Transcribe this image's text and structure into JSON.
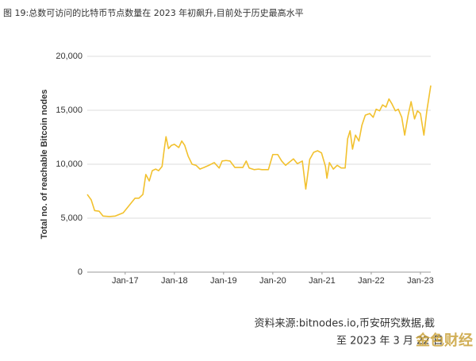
{
  "chart_data": {
    "type": "line",
    "title": "图 19:总数可访问的比特币节点数量在 2023 年初飙升,目前处于历史最高水平",
    "y_label": "Total no. of reachable Bitcoin nodes",
    "source": [
      "资料来源:bitnodes.io,币安研究数据,截",
      "至 2023 年 3 月 22 日"
    ],
    "watermark": "金色财经",
    "color": "#f2c12e",
    "grid": true,
    "xlim": [
      2016.23,
      2023.21
    ],
    "xticks": [
      {
        "value": 2017.0,
        "label": "Jan-17"
      },
      {
        "value": 2018.0,
        "label": "Jan-18"
      },
      {
        "value": 2019.0,
        "label": "Jan-19"
      },
      {
        "value": 2020.0,
        "label": "Jan-20"
      },
      {
        "value": 2021.0,
        "label": "Jan-21"
      },
      {
        "value": 2022.0,
        "label": "Jan-22"
      },
      {
        "value": 2023.0,
        "label": "Jan-23"
      }
    ],
    "ylim": [
      0,
      20000
    ],
    "yticks": [
      0,
      {
        "value": 5000,
        "label": "5,000"
      },
      {
        "value": 10000,
        "label": "10,000"
      },
      {
        "value": 15000,
        "label": "15,000"
      },
      {
        "value": 20000,
        "label": "20,000"
      }
    ],
    "x": [
      2016.23,
      2016.31,
      2016.38,
      2016.47,
      2016.55,
      2016.68,
      2016.8,
      2016.88,
      2016.96,
      2017.04,
      2017.12,
      2017.2,
      2017.28,
      2017.36,
      2017.42,
      2017.49,
      2017.55,
      2017.62,
      2017.68,
      2017.75,
      2017.79,
      2017.83,
      2017.88,
      2017.94,
      2018.0,
      2018.09,
      2018.15,
      2018.21,
      2018.28,
      2018.36,
      2018.44,
      2018.52,
      2018.6,
      2018.7,
      2018.81,
      2018.91,
      2018.97,
      2019.05,
      2019.13,
      2019.23,
      2019.29,
      2019.39,
      2019.46,
      2019.52,
      2019.62,
      2019.71,
      2019.78,
      2019.91,
      2020.0,
      2020.1,
      2020.18,
      2020.26,
      2020.34,
      2020.42,
      2020.5,
      2020.6,
      2020.67,
      2020.75,
      2020.83,
      2020.91,
      2020.99,
      2021.07,
      2021.1,
      2021.15,
      2021.23,
      2021.31,
      2021.39,
      2021.47,
      2021.52,
      2021.57,
      2021.62,
      2021.68,
      2021.75,
      2021.81,
      2021.88,
      2021.97,
      2022.04,
      2022.1,
      2022.17,
      2022.23,
      2022.3,
      2022.36,
      2022.42,
      2022.49,
      2022.55,
      2022.62,
      2022.68,
      2022.75,
      2022.81,
      2022.88,
      2022.94,
      2023.0,
      2023.07,
      2023.13,
      2023.21
    ],
    "values": [
      7200,
      6700,
      5700,
      5650,
      5200,
      5150,
      5200,
      5350,
      5500,
      5950,
      6400,
      6850,
      6850,
      7200,
      9050,
      8450,
      9400,
      9550,
      9400,
      9800,
      11250,
      12550,
      11450,
      11750,
      11850,
      11550,
      12150,
      11750,
      10750,
      10000,
      9900,
      9550,
      9700,
      9900,
      10150,
      9650,
      10300,
      10350,
      10300,
      9700,
      9700,
      9700,
      10300,
      9650,
      9500,
      9550,
      9500,
      9500,
      10900,
      10900,
      10300,
      9900,
      10200,
      10500,
      10050,
      10300,
      7700,
      10450,
      11100,
      11250,
      11050,
      9800,
      8700,
      10150,
      9550,
      9900,
      9650,
      9650,
      12350,
      13100,
      11400,
      12700,
      12150,
      13600,
      14550,
      14700,
      14350,
      15100,
      14950,
      15500,
      15300,
      16050,
      15600,
      14950,
      15100,
      14350,
      12700,
      14550,
      15800,
      14200,
      14950,
      14700,
      12700,
      14950,
      17300
    ]
  }
}
